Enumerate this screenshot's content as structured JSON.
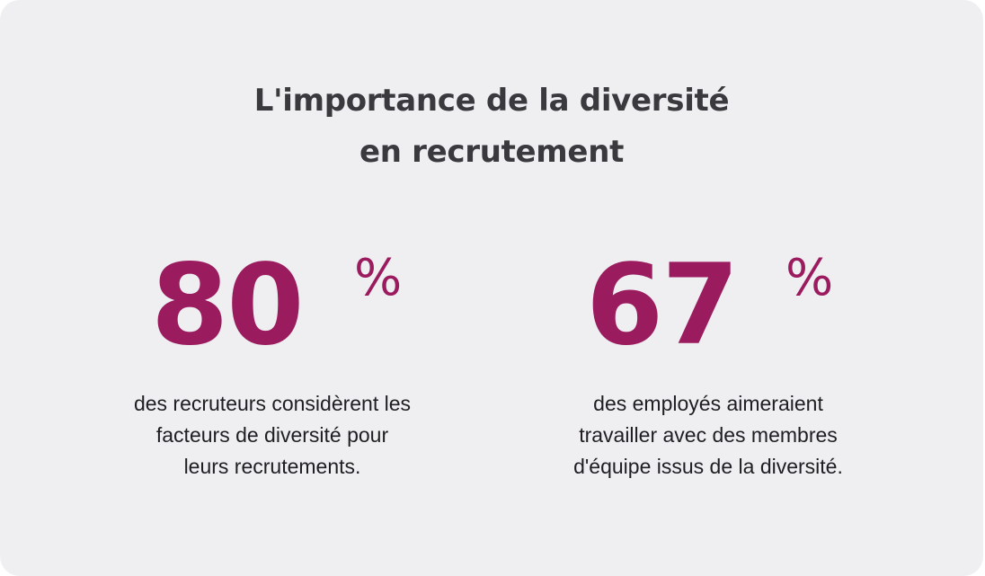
{
  "title": {
    "line1": "L'importance de la diversité",
    "line2": "en recrutement"
  },
  "stats": [
    {
      "value": "80",
      "unit": "%",
      "description": [
        "des recruteurs considèrent les",
        "facteurs de diversité pour",
        "leurs recrutements."
      ]
    },
    {
      "value": "67",
      "unit": "%",
      "description": [
        "des employés aimeraient",
        "travailler avec des membres",
        "d'équipe issus de la diversité."
      ]
    }
  ],
  "colors": {
    "background": "#efeef1",
    "accent": "#9b1b5f",
    "title": "#3a393d",
    "text": "#1f1e22"
  }
}
